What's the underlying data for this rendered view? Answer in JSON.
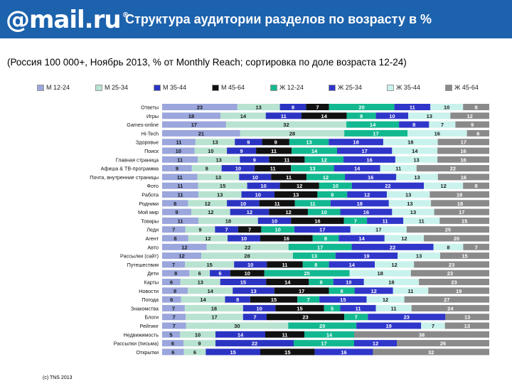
{
  "header": {
    "logo_text": "@mail.ru",
    "logo_reg": "®",
    "title": "Структура аудитории разделов по возрасту в %"
  },
  "subtitle": "(Россия 100 000+, Ноябрь 2013, % от Monthly Reach; сортировка по доле возраста 12-24)",
  "footer": "(c) TNS 2013",
  "colors": {
    "header_bg": "#1c62ad",
    "series": [
      "#9aa6dc",
      "#b8e3d0",
      "#2b34c2",
      "#111111",
      "#12b890",
      "#2f36c9",
      "#c9f2ec",
      "#8a8a8a"
    ]
  },
  "chart_data": {
    "type": "bar",
    "orientation": "horizontal",
    "stacked": true,
    "percent": true,
    "legend_position": "top",
    "series": [
      {
        "name": "М 12-24"
      },
      {
        "name": "М 25-34"
      },
      {
        "name": "М 35-44"
      },
      {
        "name": "М 45-64"
      },
      {
        "name": "Ж 12-24"
      },
      {
        "name": "Ж 25-34"
      },
      {
        "name": "Ж 35-44"
      },
      {
        "name": "Ж 45-64"
      }
    ],
    "categories": [
      "Ответы",
      "Игры",
      "Games-online",
      "Hi-Tech",
      "Здоровье",
      "Поиск",
      "Главная страница",
      "Афиша & ТВ-программа",
      "Почта, внутренние страницы",
      "Фото",
      "Работа",
      "Родники",
      "Мой мир",
      "Товары",
      "Леди",
      "Агент",
      "Авто",
      "Рассылки (сайт)",
      "Путешествия",
      "Дети",
      "Карты",
      "Новости",
      "Погода",
      "Знакомства",
      "Блоги",
      "Рейтинг",
      "Недвижимость",
      "Рассылки (письма)",
      "Открытки"
    ],
    "rows": [
      [
        23,
        13,
        8,
        7,
        20,
        11,
        10,
        8
      ],
      [
        18,
        14,
        11,
        14,
        9,
        10,
        13,
        12
      ],
      [
        17,
        32,
        0,
        0,
        14,
        8,
        7,
        9
      ],
      [
        21,
        28,
        0,
        0,
        17,
        0,
        16,
        6
      ],
      [
        11,
        13,
        9,
        9,
        13,
        18,
        18,
        17
      ],
      [
        10,
        10,
        9,
        11,
        14,
        17,
        14,
        16
      ],
      [
        11,
        13,
        9,
        11,
        12,
        16,
        13,
        16
      ],
      [
        9,
        9,
        10,
        11,
        13,
        14,
        11,
        22
      ],
      [
        11,
        13,
        10,
        11,
        12,
        16,
        13,
        16
      ],
      [
        11,
        15,
        10,
        12,
        10,
        22,
        12,
        8
      ],
      [
        11,
        13,
        10,
        13,
        9,
        12,
        13,
        18
      ],
      [
        8,
        12,
        10,
        11,
        11,
        18,
        13,
        18
      ],
      [
        9,
        12,
        12,
        12,
        10,
        16,
        13,
        17
      ],
      [
        11,
        18,
        10,
        16,
        7,
        11,
        11,
        15
      ],
      [
        7,
        9,
        7,
        7,
        10,
        17,
        17,
        25
      ],
      [
        8,
        12,
        10,
        16,
        8,
        14,
        12,
        20
      ],
      [
        12,
        22,
        0,
        0,
        17,
        22,
        8,
        7
      ],
      [
        12,
        28,
        0,
        0,
        13,
        19,
        13,
        15
      ],
      [
        7,
        15,
        10,
        11,
        8,
        14,
        12,
        23
      ],
      [
        8,
        6,
        6,
        10,
        25,
        0,
        18,
        23
      ],
      [
        6,
        13,
        15,
        14,
        8,
        10,
        18,
        23
      ],
      [
        8,
        14,
        13,
        17,
        8,
        12,
        11,
        19
      ],
      [
        6,
        14,
        8,
        15,
        7,
        15,
        12,
        27
      ],
      [
        7,
        18,
        10,
        15,
        5,
        11,
        11,
        24
      ],
      [
        7,
        17,
        7,
        23,
        7,
        23,
        0,
        13
      ],
      [
        7,
        30,
        0,
        0,
        20,
        19,
        7,
        13
      ],
      [
        5,
        10,
        14,
        11,
        14,
        0,
        0,
        38
      ],
      [
        6,
        9,
        22,
        0,
        17,
        12,
        0,
        26
      ],
      [
        6,
        6,
        15,
        15,
        0,
        16,
        0,
        32
      ]
    ]
  }
}
